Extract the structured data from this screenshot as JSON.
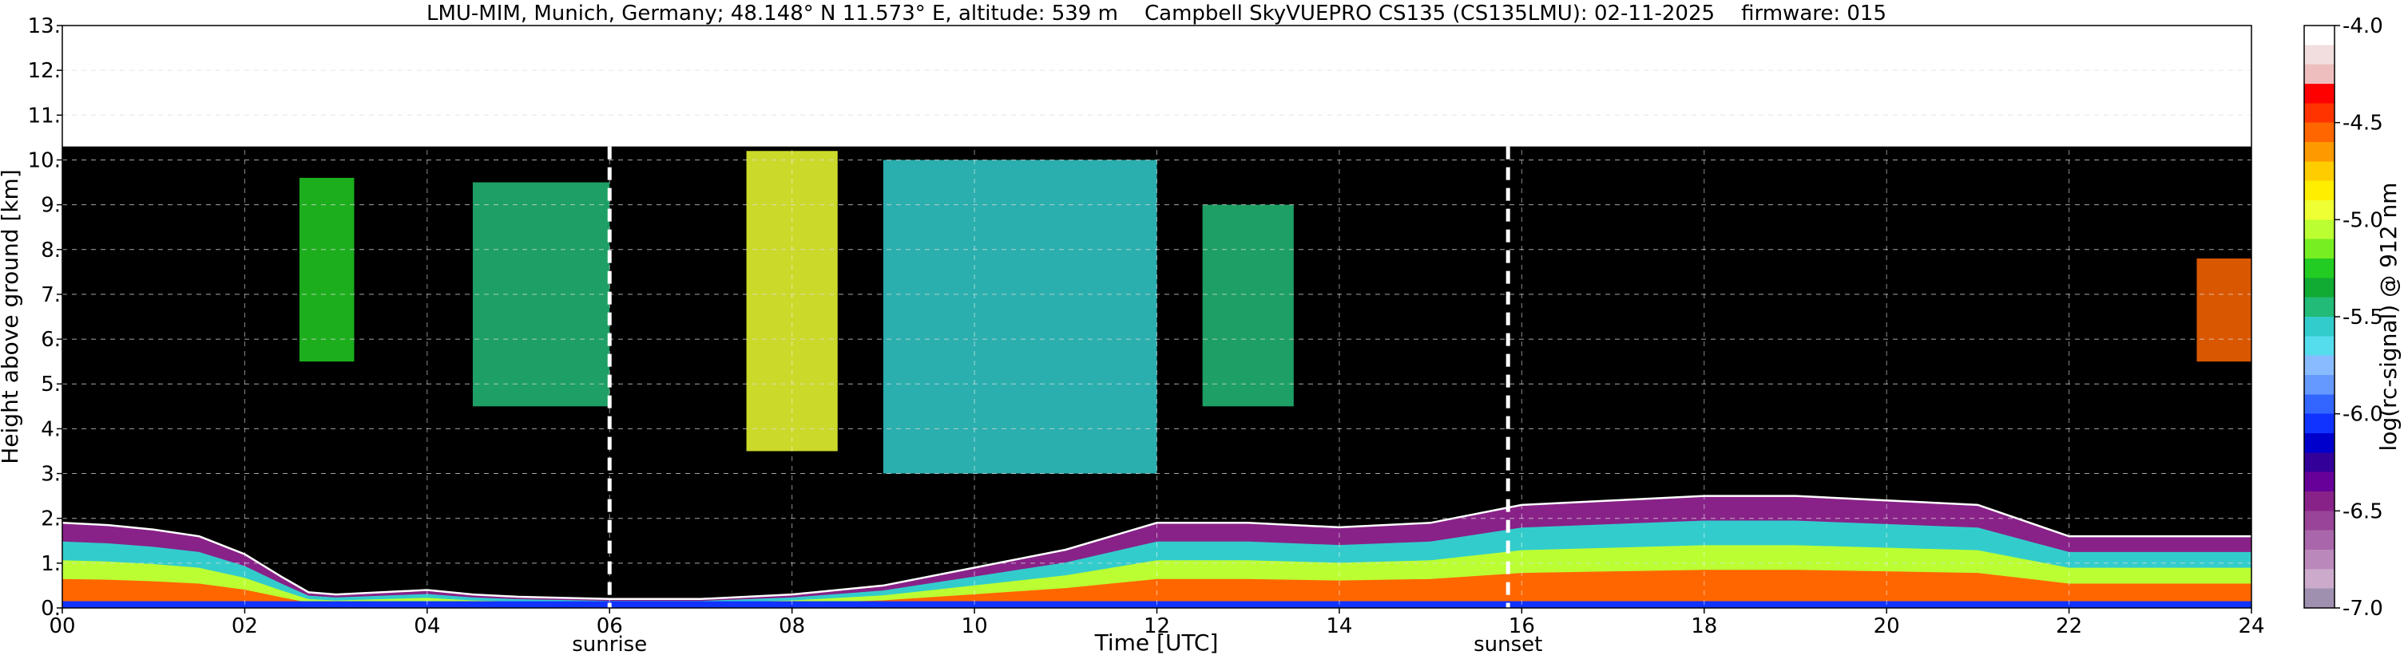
{
  "chart_data": {
    "type": "heatmap",
    "title": "LMU-MIM, Munich, Germany; 48.148° N 11.573° E, altitude: 539 m    Campbell SkyVUEPRO CS135 (CS135LMU): 02-11-2025    firmware: 015",
    "xlabel": "Time [UTC]",
    "ylabel": "Height above ground [km]",
    "xlim": [
      0,
      24
    ],
    "ylim": [
      0,
      13
    ],
    "x_ticks": [
      "00",
      "02",
      "04",
      "06",
      "08",
      "10",
      "12",
      "14",
      "16",
      "18",
      "20",
      "22",
      "24"
    ],
    "y_ticks": [
      "0.",
      "1.",
      "2.",
      "3.",
      "4.",
      "5.",
      "6.",
      "7.",
      "8.",
      "9.",
      "10.",
      "11.",
      "12.",
      "13."
    ],
    "grid": true,
    "data_top_km": 10.3,
    "colorbar": {
      "label": "log(rc-signal) @ 912 nm",
      "range": [
        -7.0,
        -4.0
      ],
      "tick_labels": [
        "-4.0",
        "-4.5",
        "-5.0",
        "-5.5",
        "-6.0",
        "-6.5",
        "-7.0"
      ],
      "colors": [
        "#ffffff",
        "#f2dede",
        "#eebebe",
        "#ff0000",
        "#ff3300",
        "#ff6600",
        "#ff9900",
        "#ffcc00",
        "#ffee00",
        "#eeff33",
        "#bbff33",
        "#77ee22",
        "#22cc22",
        "#11aa33",
        "#22bb77",
        "#33cccc",
        "#55ddee",
        "#88bbff",
        "#6699ff",
        "#3366ff",
        "#1133ff",
        "#0000cc",
        "#330099",
        "#660099",
        "#882288",
        "#994499",
        "#aa66aa",
        "#bb88bb",
        "#ccaacc",
        "#a090b0"
      ]
    },
    "events": [
      {
        "label": "sunrise",
        "time": 6.0
      },
      {
        "label": "sunset",
        "time": 15.85
      }
    ],
    "boundary_layer_top_km": [
      [
        0.0,
        1.9
      ],
      [
        0.5,
        1.85
      ],
      [
        1.0,
        1.75
      ],
      [
        1.5,
        1.6
      ],
      [
        2.0,
        1.2
      ],
      [
        2.4,
        0.7
      ],
      [
        2.7,
        0.35
      ],
      [
        3.0,
        0.3
      ],
      [
        4.0,
        0.4
      ],
      [
        4.5,
        0.3
      ],
      [
        5.0,
        0.25
      ],
      [
        6.0,
        0.2
      ],
      [
        7.0,
        0.2
      ],
      [
        8.0,
        0.3
      ],
      [
        9.0,
        0.5
      ],
      [
        10.0,
        0.9
      ],
      [
        11.0,
        1.3
      ],
      [
        12.0,
        1.9
      ],
      [
        13.0,
        1.9
      ],
      [
        14.0,
        1.8
      ],
      [
        15.0,
        1.9
      ],
      [
        16.0,
        2.3
      ],
      [
        17.0,
        2.4
      ],
      [
        18.0,
        2.5
      ],
      [
        19.0,
        2.5
      ],
      [
        20.0,
        2.4
      ],
      [
        21.0,
        2.3
      ],
      [
        22.0,
        1.6
      ],
      [
        23.0,
        1.6
      ],
      [
        24.0,
        1.6
      ]
    ],
    "cloud_layers": [
      {
        "t0": 2.6,
        "t1": 3.2,
        "base_km": 5.5,
        "top_km": 9.6,
        "level": -5.3
      },
      {
        "t0": 4.5,
        "t1": 6.0,
        "base_km": 4.5,
        "top_km": 9.5,
        "level": -5.4
      },
      {
        "t0": 7.5,
        "t1": 8.5,
        "base_km": 3.5,
        "top_km": 10.2,
        "level": -4.9
      },
      {
        "t0": 9.0,
        "t1": 12.0,
        "base_km": 3.0,
        "top_km": 10.0,
        "level": -5.6
      },
      {
        "t0": 12.5,
        "t1": 13.5,
        "base_km": 4.5,
        "top_km": 9.0,
        "level": -5.4
      },
      {
        "t0": 23.4,
        "t1": 24.0,
        "base_km": 5.5,
        "top_km": 7.8,
        "level": -4.6
      }
    ]
  }
}
